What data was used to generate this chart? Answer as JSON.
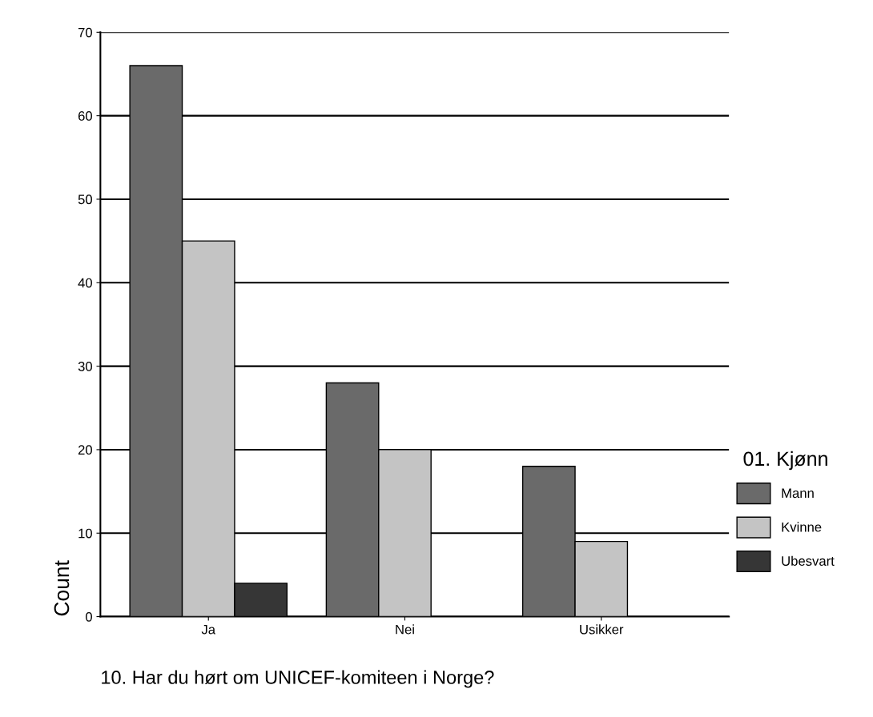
{
  "chart_data": {
    "type": "bar",
    "xlabel": "10. Har du hørt om UNICEF-komiteen i Norge?",
    "ylabel": "Count",
    "legend_title": "01. Kjønn",
    "categories": [
      "Ja",
      "Nei",
      "Usikker"
    ],
    "series": [
      {
        "name": "Mann",
        "color": "#6a6a6a",
        "values": [
          66,
          28,
          18
        ]
      },
      {
        "name": "Kvinne",
        "color": "#c4c4c4",
        "values": [
          45,
          20,
          9
        ]
      },
      {
        "name": "Ubesvart",
        "color": "#363636",
        "values": [
          4,
          null,
          null
        ]
      }
    ],
    "ylim": [
      0,
      70
    ],
    "yticks": [
      0,
      10,
      20,
      30,
      40,
      50,
      60,
      70
    ],
    "grid": "y",
    "legend": "right"
  }
}
